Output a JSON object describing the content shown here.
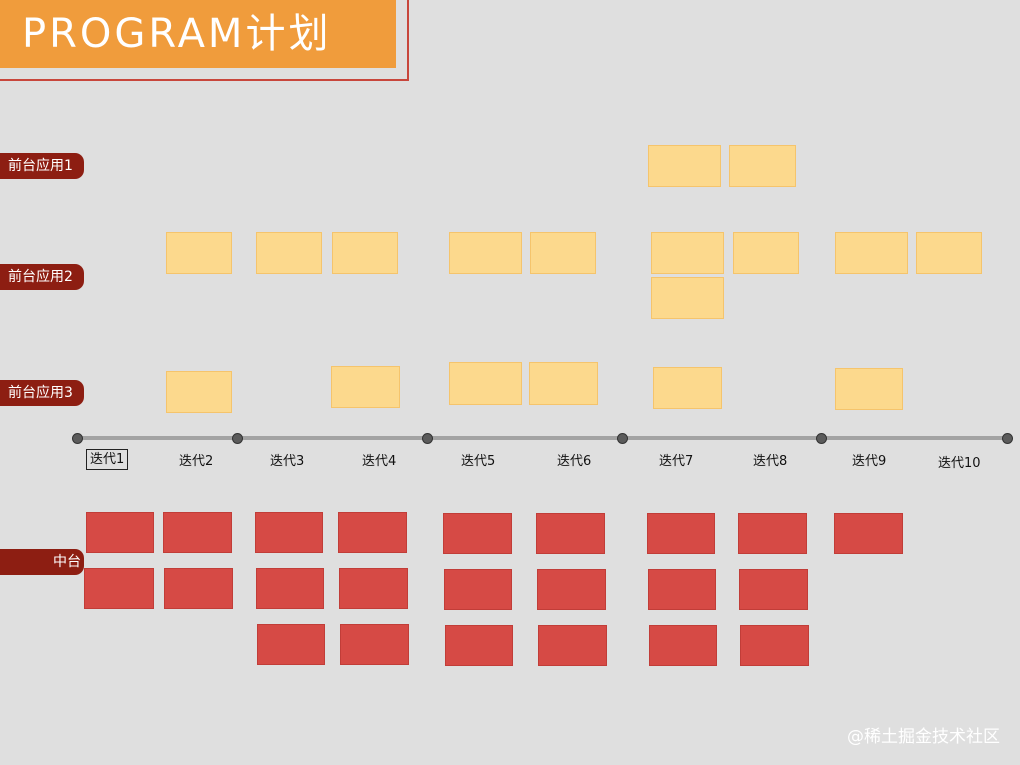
{
  "title": "PROGRAM计划",
  "lanes": {
    "front_app_1": "前台应用1",
    "front_app_2": "前台应用2",
    "front_app_3": "前台应用3",
    "middle": "中台"
  },
  "iterations": [
    "迭代1",
    "迭代2",
    "迭代3",
    "迭代4",
    "迭代5",
    "迭代6",
    "迭代7",
    "迭代8",
    "迭代9",
    "迭代10"
  ],
  "colors": {
    "title_bg": "#f09c3c",
    "lane_tag": "#8d1e12",
    "sticky": "#fcd98d",
    "middle_block": "#d64a45"
  },
  "watermark": "@稀土掘金技术社区"
}
